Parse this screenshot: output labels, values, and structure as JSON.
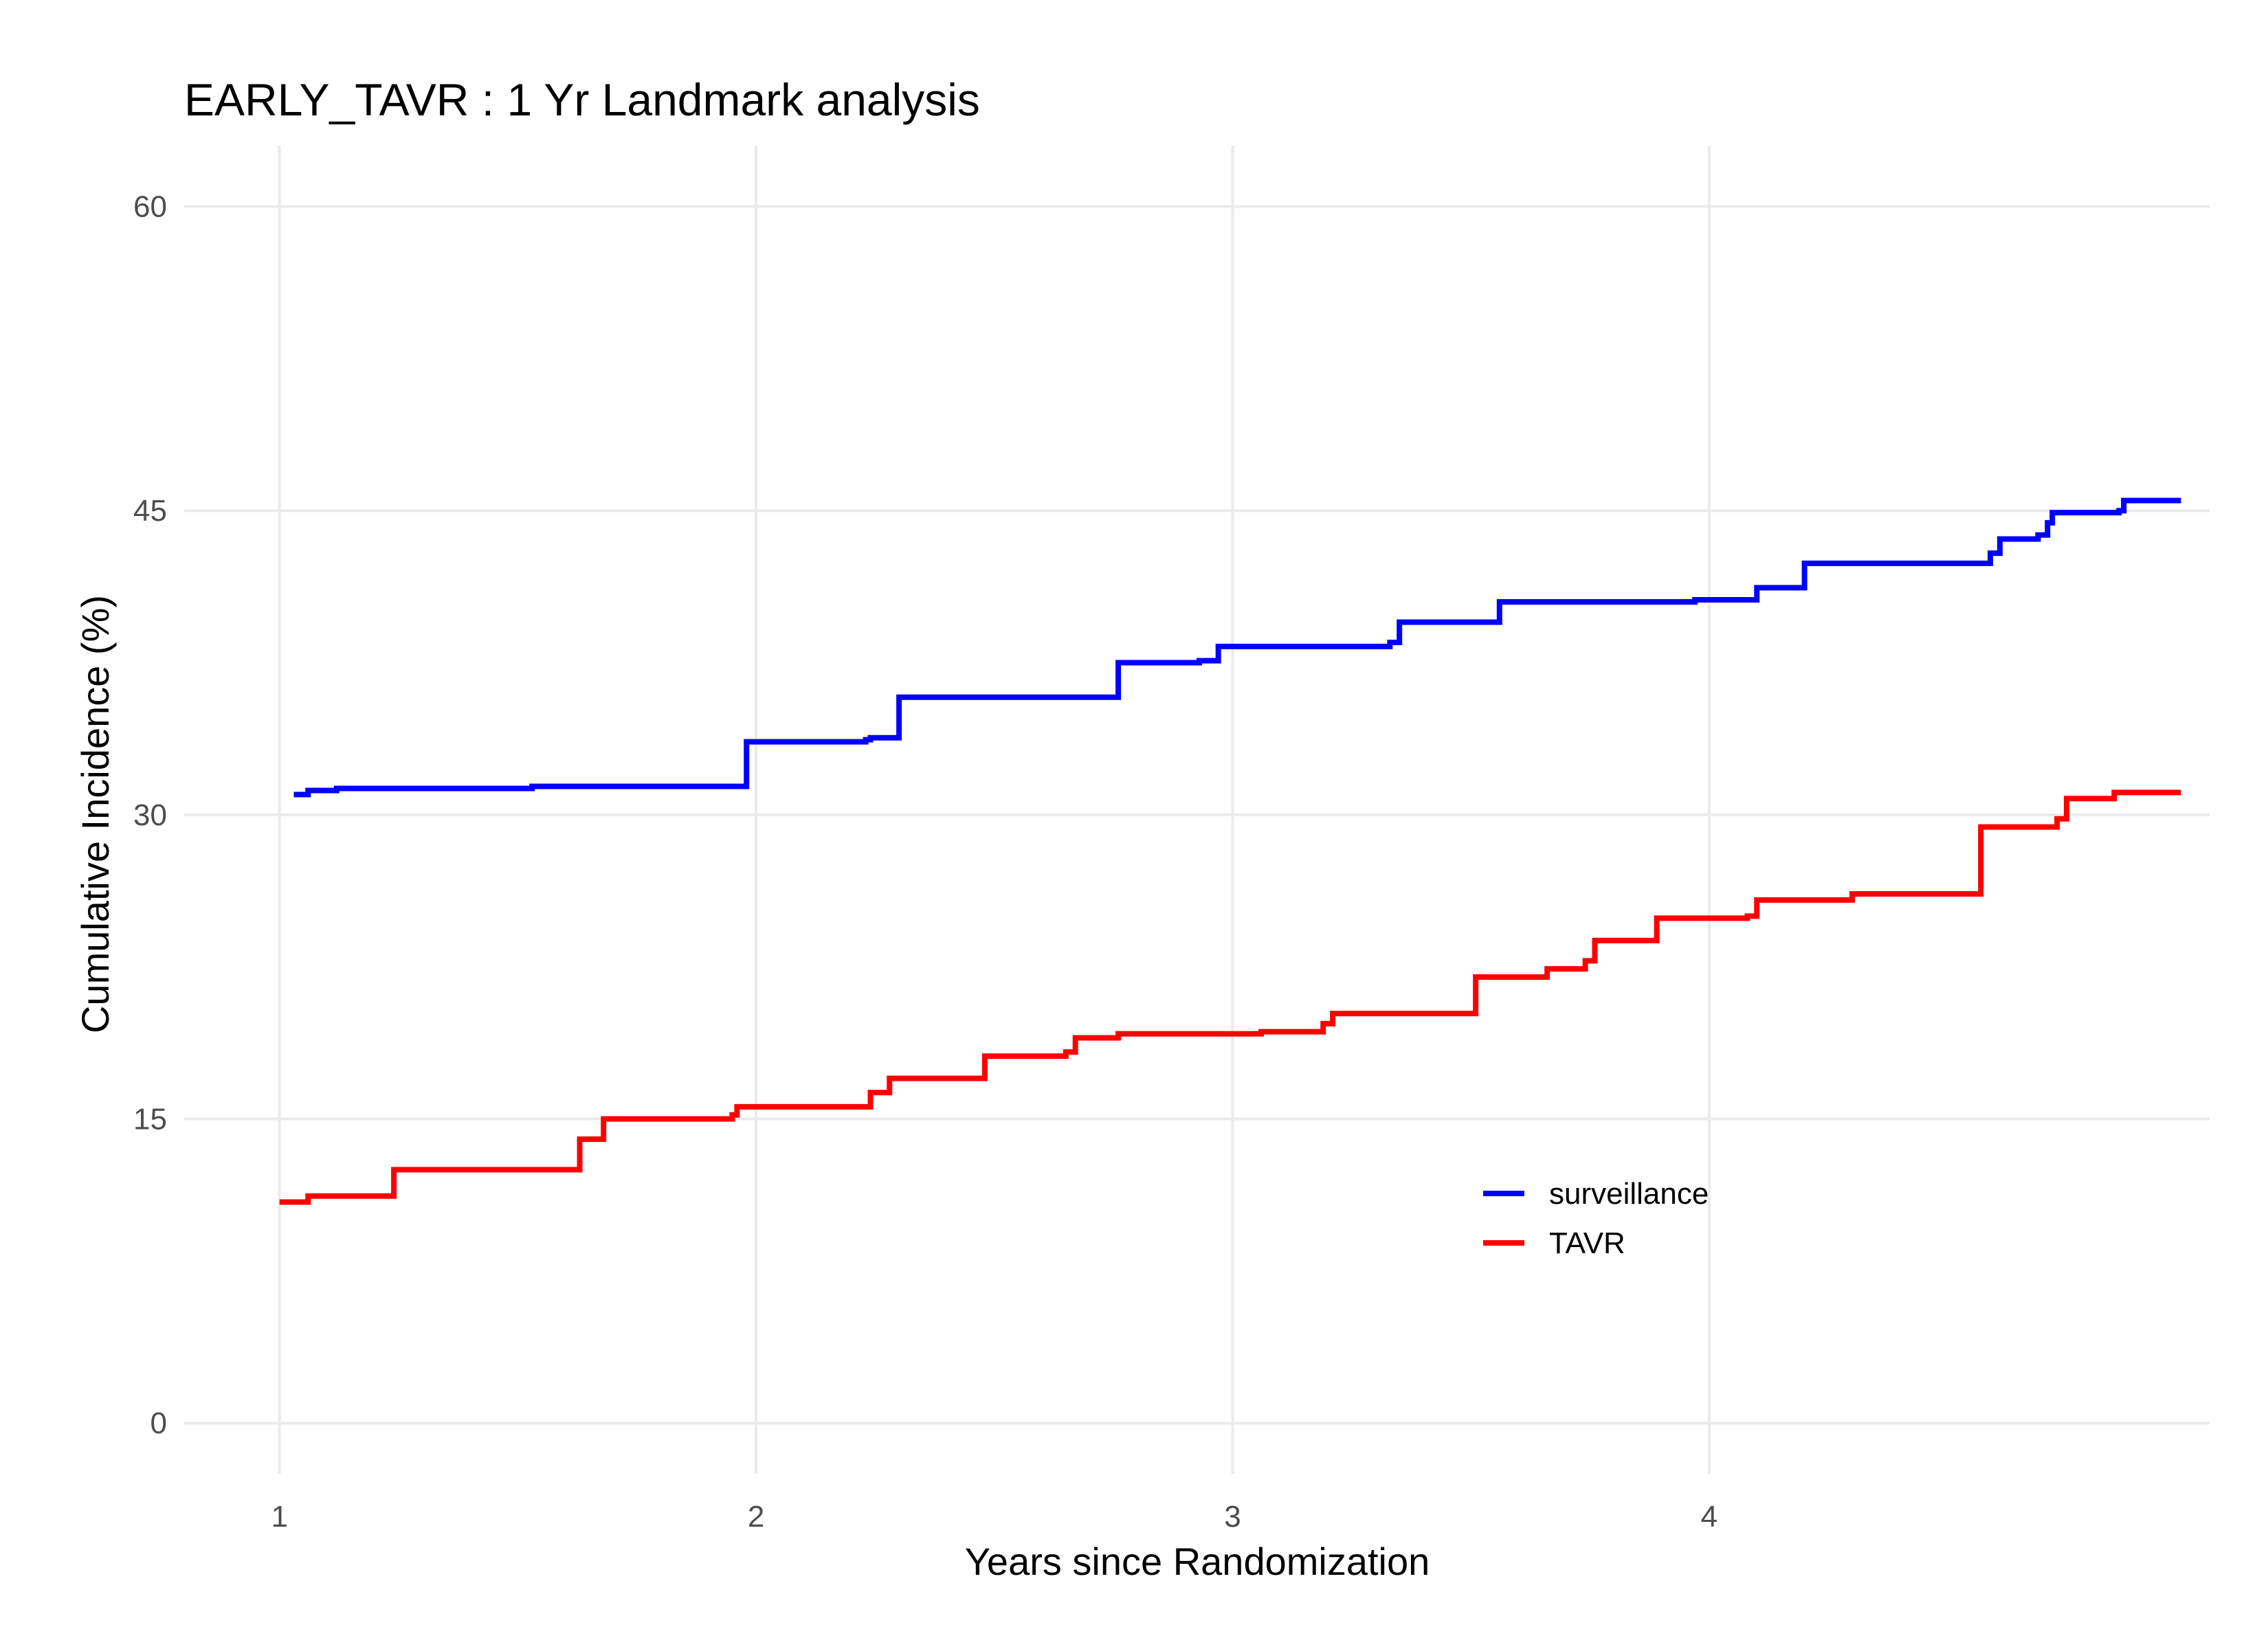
{
  "chart_data": {
    "type": "line",
    "step": true,
    "title": "EARLY_TAVR : 1 Yr Landmark analysis",
    "xlabel": "Years since Randomization",
    "ylabel": "Cumulative Incidence (%)",
    "xlim": [
      0.8,
      5.05
    ],
    "ylim": [
      -2.5,
      63
    ],
    "x_ticks": [
      "1",
      "2",
      "3",
      "4"
    ],
    "y_ticks": [
      "0",
      "15",
      "30",
      "45",
      "60"
    ],
    "grid": true,
    "legend_position": "inside-bottom-right",
    "series": [
      {
        "name": "surveillance",
        "color": "#0000ff",
        "points": [
          [
            1.03,
            31.0
          ],
          [
            1.06,
            31.2
          ],
          [
            1.12,
            31.3
          ],
          [
            1.53,
            31.4
          ],
          [
            1.98,
            33.6
          ],
          [
            2.23,
            33.7
          ],
          [
            2.24,
            33.8
          ],
          [
            2.3,
            35.8
          ],
          [
            2.76,
            37.5
          ],
          [
            2.93,
            37.6
          ],
          [
            2.97,
            38.3
          ],
          [
            3.33,
            38.5
          ],
          [
            3.35,
            39.5
          ],
          [
            3.56,
            40.5
          ],
          [
            3.97,
            40.6
          ],
          [
            4.1,
            41.2
          ],
          [
            4.2,
            42.4
          ],
          [
            4.59,
            42.9
          ],
          [
            4.61,
            43.6
          ],
          [
            4.69,
            43.8
          ],
          [
            4.71,
            44.4
          ],
          [
            4.72,
            44.9
          ],
          [
            4.86,
            45.0
          ],
          [
            4.87,
            45.5
          ],
          [
            4.99,
            45.5
          ]
        ]
      },
      {
        "name": "TAVR",
        "color": "#ff0000",
        "points": [
          [
            1.0,
            10.9
          ],
          [
            1.06,
            11.2
          ],
          [
            1.24,
            12.5
          ],
          [
            1.63,
            14.0
          ],
          [
            1.68,
            15.0
          ],
          [
            1.95,
            15.2
          ],
          [
            1.96,
            15.6
          ],
          [
            2.24,
            16.3
          ],
          [
            2.28,
            17.0
          ],
          [
            2.48,
            18.1
          ],
          [
            2.65,
            18.3
          ],
          [
            2.67,
            19.0
          ],
          [
            2.76,
            19.2
          ],
          [
            3.06,
            19.3
          ],
          [
            3.19,
            19.7
          ],
          [
            3.21,
            20.2
          ],
          [
            3.51,
            22.0
          ],
          [
            3.66,
            22.4
          ],
          [
            3.74,
            22.8
          ],
          [
            3.76,
            23.8
          ],
          [
            3.89,
            24.9
          ],
          [
            4.08,
            25.0
          ],
          [
            4.1,
            25.8
          ],
          [
            4.3,
            26.1
          ],
          [
            4.57,
            29.4
          ],
          [
            4.73,
            29.8
          ],
          [
            4.75,
            30.8
          ],
          [
            4.85,
            31.1
          ],
          [
            4.99,
            31.1
          ]
        ]
      }
    ]
  }
}
